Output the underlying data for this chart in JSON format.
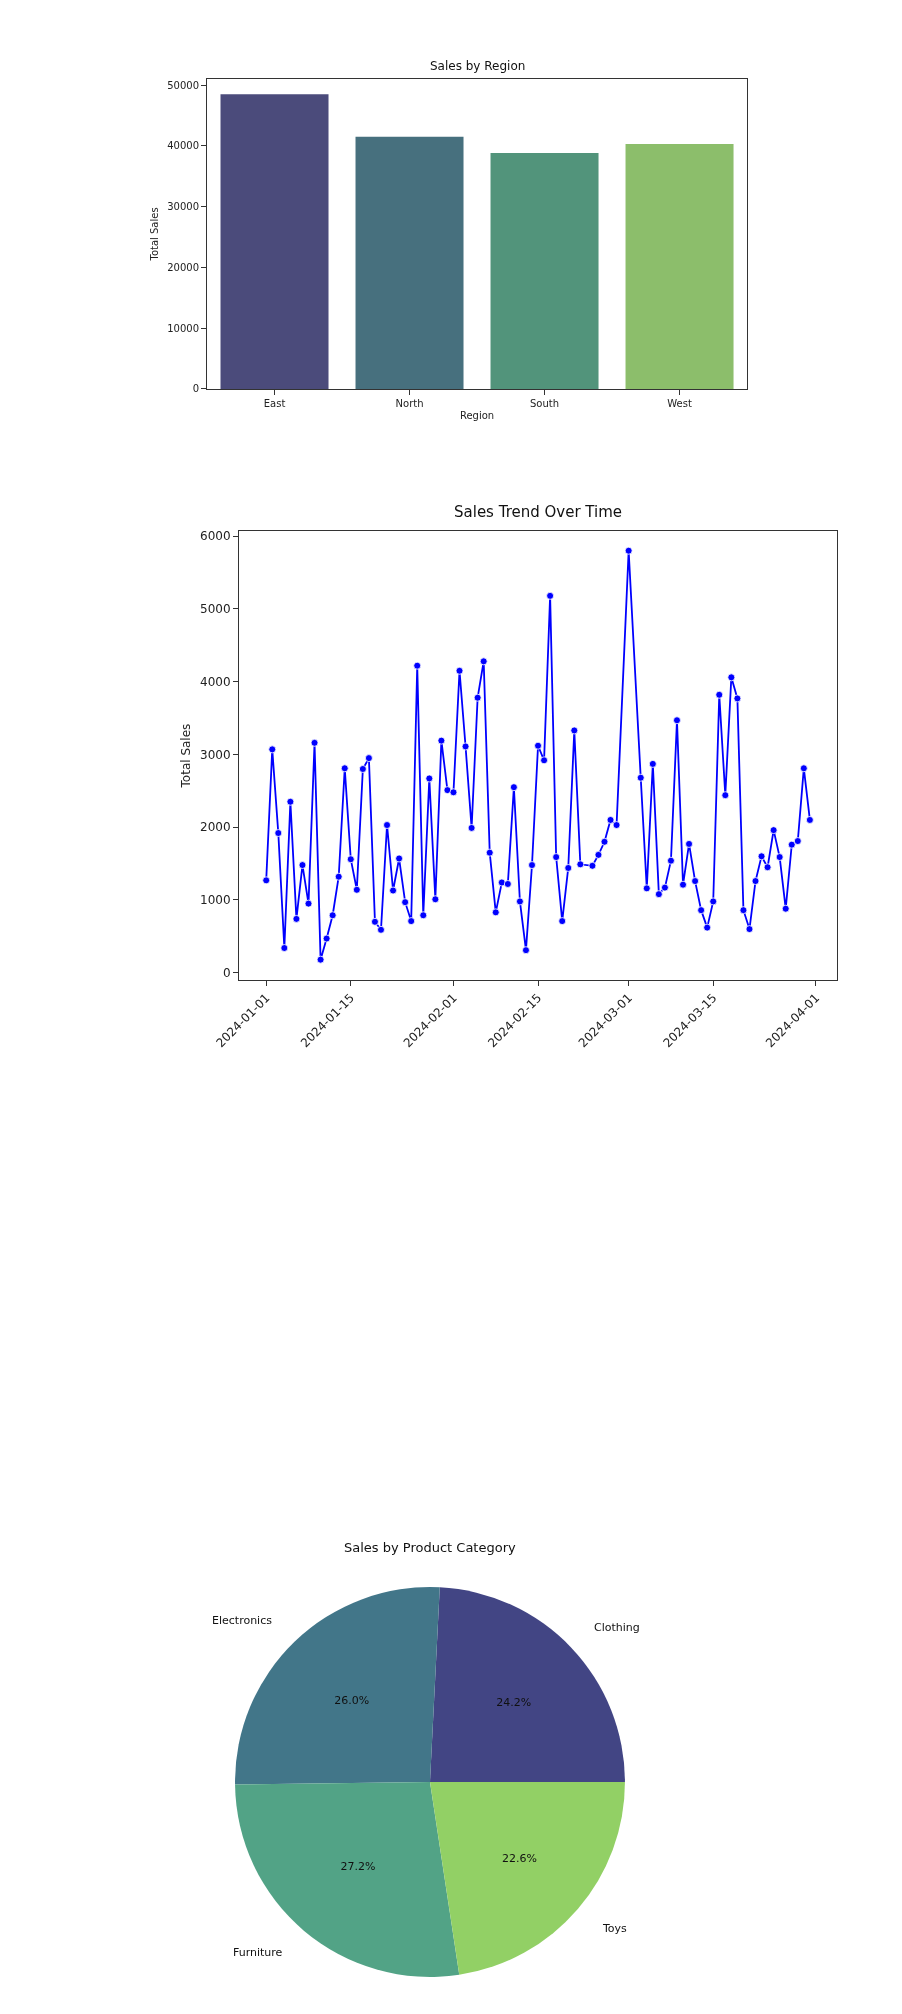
{
  "chart_data": [
    {
      "type": "bar",
      "title": "Sales by Region",
      "xlabel": "Region",
      "ylabel": "Total Sales",
      "categories": [
        "East",
        "North",
        "South",
        "West"
      ],
      "values": [
        48500,
        41500,
        38800,
        40300
      ],
      "colors": [
        "#4b4b7b",
        "#47707e",
        "#52947b",
        "#8cbe6b"
      ],
      "ylim": [
        0,
        51000
      ],
      "yticks": [
        0,
        10000,
        20000,
        30000,
        40000,
        50000
      ]
    },
    {
      "type": "line",
      "title": "Sales Trend Over Time",
      "ylabel": "Total Sales",
      "marker": "circle",
      "line_style": "solid",
      "x": [
        "2024-01-01",
        "2024-01-02",
        "2024-01-03",
        "2024-01-04",
        "2024-01-05",
        "2024-01-06",
        "2024-01-07",
        "2024-01-08",
        "2024-01-09",
        "2024-01-10",
        "2024-01-11",
        "2024-01-12",
        "2024-01-13",
        "2024-01-14",
        "2024-01-15",
        "2024-01-16",
        "2024-01-17",
        "2024-01-18",
        "2024-01-19",
        "2024-01-20",
        "2024-01-21",
        "2024-01-22",
        "2024-01-23",
        "2024-01-24",
        "2024-01-25",
        "2024-01-26",
        "2024-01-27",
        "2024-01-28",
        "2024-01-29",
        "2024-01-30",
        "2024-01-31",
        "2024-02-01",
        "2024-02-02",
        "2024-02-03",
        "2024-02-04",
        "2024-02-05",
        "2024-02-06",
        "2024-02-07",
        "2024-02-08",
        "2024-02-09",
        "2024-02-10",
        "2024-02-11",
        "2024-02-12",
        "2024-02-13",
        "2024-02-14",
        "2024-02-15",
        "2024-02-16",
        "2024-02-17",
        "2024-02-18",
        "2024-02-19",
        "2024-02-20",
        "2024-02-21",
        "2024-02-22",
        "2024-02-24",
        "2024-02-25",
        "2024-02-26",
        "2024-02-27",
        "2024-02-28",
        "2024-03-01",
        "2024-03-03",
        "2024-03-04",
        "2024-03-05",
        "2024-03-06",
        "2024-03-07",
        "2024-03-08",
        "2024-03-09",
        "2024-03-10",
        "2024-03-11",
        "2024-03-12",
        "2024-03-13",
        "2024-03-14",
        "2024-03-15",
        "2024-03-16",
        "2024-03-17",
        "2024-03-18",
        "2024-03-19",
        "2024-03-20",
        "2024-03-21",
        "2024-03-22",
        "2024-03-23",
        "2024-03-24",
        "2024-03-25",
        "2024-03-26",
        "2024-03-27",
        "2024-03-28",
        "2024-03-29",
        "2024-03-30",
        "2024-03-31"
      ],
      "series": [
        {
          "color": "#0000ff",
          "values": [
            1270,
            3070,
            1920,
            340,
            2350,
            740,
            1480,
            950,
            3160,
            180,
            470,
            790,
            1320,
            2810,
            1560,
            1140,
            2800,
            2950,
            700,
            590,
            2030,
            1130,
            1570,
            970,
            710,
            4220,
            790,
            2670,
            1010,
            3190,
            2510,
            2480,
            4150,
            3110,
            1990,
            3780,
            4280,
            1650,
            830,
            1240,
            1220,
            2550,
            980,
            310,
            1480,
            3120,
            2920,
            5180,
            1590,
            710,
            1440,
            3330,
            1490,
            1470,
            1620,
            1800,
            2100,
            2030,
            5800,
            2680,
            1160,
            2870,
            1080,
            1170,
            1540,
            3470,
            1210,
            1770,
            1260,
            860,
            620,
            980,
            3820,
            2440,
            4060,
            3770,
            860,
            600,
            1260,
            1600,
            1450,
            1960,
            1590,
            880,
            1760,
            1810,
            2810,
            2100
          ]
        }
      ],
      "xlim": [
        "2023-12-27T12:00",
        "2024-04-04T12:00"
      ],
      "xticks": [
        "2024-01-01",
        "2024-01-15",
        "2024-02-01",
        "2024-02-15",
        "2024-03-01",
        "2024-03-15",
        "2024-04-01"
      ],
      "ylim": [
        -100,
        6070
      ],
      "yticks": [
        0,
        1000,
        2000,
        3000,
        4000,
        5000,
        6000
      ]
    },
    {
      "type": "pie",
      "title": "Sales by Product Category",
      "categories": [
        "Clothing",
        "Electronics",
        "Furniture",
        "Toys"
      ],
      "values": [
        24.2,
        26.0,
        27.2,
        22.6
      ],
      "value_labels": [
        "24.2%",
        "26.0%",
        "27.2%",
        "22.6%"
      ],
      "colors": [
        "#424584",
        "#427689",
        "#52a386",
        "#92d065"
      ]
    }
  ]
}
